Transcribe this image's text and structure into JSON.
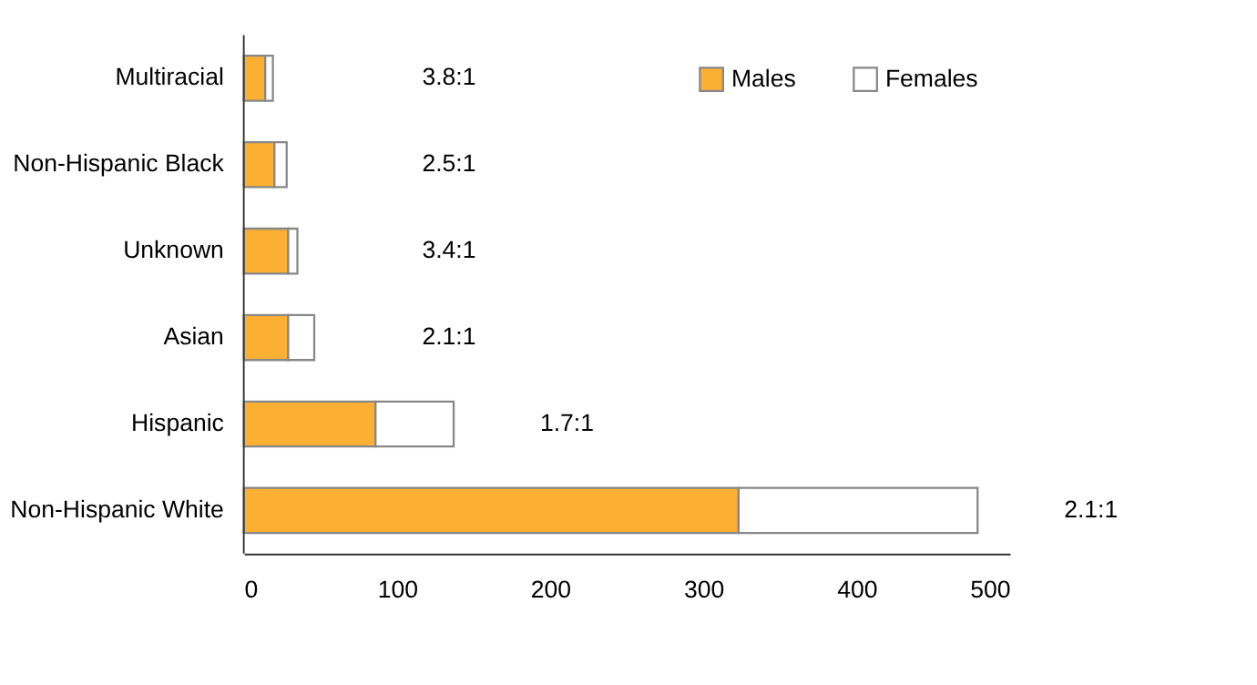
{
  "chart_data": {
    "type": "bar",
    "orientation": "horizontal",
    "stacked": true,
    "categories": [
      "Multiracial",
      "Non-Hispanic Black",
      "Unknown",
      "Asian",
      "Hispanic",
      "Non-Hispanic White"
    ],
    "series": [
      {
        "name": "Males",
        "color": "#fbb034",
        "values": [
          14,
          20,
          29,
          29,
          86,
          323
        ]
      },
      {
        "name": "Females",
        "color": "#ffffff",
        "values": [
          5,
          8,
          6,
          17,
          51,
          156
        ]
      }
    ],
    "xlim": [
      0,
      500
    ],
    "xticks": [
      0,
      100,
      200,
      300,
      400,
      500
    ],
    "grid": false,
    "legend": "top right",
    "annotations": [
      "3.8:1",
      "2.5:1",
      "3.4:1",
      "2.1:1",
      "1.7:1",
      "2.1:1"
    ]
  }
}
